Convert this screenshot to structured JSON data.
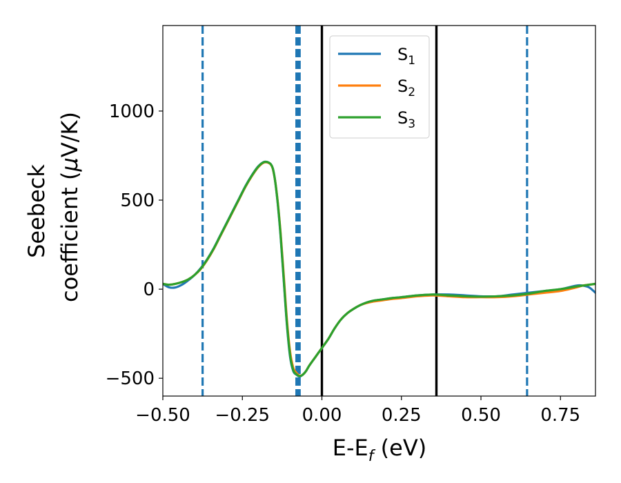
{
  "chart_data": {
    "type": "line",
    "title": "",
    "xlabel": "E-E",
    "xlabel_sub": "f",
    "xlabel_unit": " (eV)",
    "ylabel_line1": "Seebeck",
    "ylabel_line2": "coefficient  (",
    "ylabel_mu": "μ",
    "ylabel_unit": "V/K)",
    "xlim": [
      -0.5,
      0.86
    ],
    "ylim": [
      -600,
      1480
    ],
    "xticks": [
      -0.5,
      -0.25,
      0.0,
      0.25,
      0.5,
      0.75
    ],
    "xtick_labels": [
      "−0.50",
      "−0.25",
      "0.00",
      "0.25",
      "0.50",
      "0.75"
    ],
    "yticks": [
      -500,
      0,
      500,
      1000
    ],
    "ytick_labels": [
      "−500",
      "0",
      "500",
      "1000"
    ],
    "grid": false,
    "legend_position": "top-right",
    "series": [
      {
        "name": "S",
        "subscript": "1",
        "color": "#1f77b4",
        "x": [
          -0.5,
          -0.48,
          -0.46,
          -0.44,
          -0.42,
          -0.4,
          -0.38,
          -0.36,
          -0.34,
          -0.32,
          -0.3,
          -0.28,
          -0.26,
          -0.24,
          -0.22,
          -0.2,
          -0.18,
          -0.16,
          -0.15,
          -0.14,
          -0.13,
          -0.12,
          -0.11,
          -0.1,
          -0.09,
          -0.08,
          -0.07,
          -0.06,
          -0.05,
          -0.04,
          -0.02,
          0.0,
          0.02,
          0.04,
          0.06,
          0.08,
          0.1,
          0.12,
          0.14,
          0.16,
          0.18,
          0.2,
          0.22,
          0.25,
          0.3,
          0.35,
          0.4,
          0.45,
          0.5,
          0.55,
          0.6,
          0.65,
          0.7,
          0.75,
          0.8,
          0.82,
          0.84,
          0.86
        ],
        "y": [
          30,
          10,
          10,
          25,
          50,
          80,
          120,
          170,
          230,
          300,
          370,
          440,
          510,
          580,
          640,
          690,
          715,
          700,
          640,
          500,
          300,
          50,
          -200,
          -380,
          -460,
          -480,
          -490,
          -480,
          -460,
          -430,
          -380,
          -330,
          -280,
          -220,
          -170,
          -135,
          -110,
          -90,
          -75,
          -65,
          -60,
          -55,
          -50,
          -45,
          -35,
          -30,
          -30,
          -35,
          -40,
          -40,
          -30,
          -20,
          -10,
          0,
          20,
          20,
          10,
          -20
        ]
      },
      {
        "name": "S",
        "subscript": "2",
        "color": "#ff7f0e",
        "x": [
          -0.5,
          -0.48,
          -0.46,
          -0.44,
          -0.42,
          -0.4,
          -0.38,
          -0.36,
          -0.34,
          -0.32,
          -0.3,
          -0.28,
          -0.26,
          -0.24,
          -0.22,
          -0.2,
          -0.18,
          -0.16,
          -0.15,
          -0.14,
          -0.13,
          -0.12,
          -0.11,
          -0.1,
          -0.09,
          -0.08,
          -0.07,
          -0.06,
          -0.05,
          -0.04,
          -0.02,
          0.0,
          0.02,
          0.04,
          0.06,
          0.08,
          0.1,
          0.12,
          0.14,
          0.16,
          0.18,
          0.2,
          0.22,
          0.25,
          0.3,
          0.35,
          0.4,
          0.45,
          0.5,
          0.55,
          0.6,
          0.65,
          0.7,
          0.75,
          0.8,
          0.82,
          0.84,
          0.86
        ],
        "y": [
          30,
          25,
          30,
          40,
          55,
          80,
          115,
          165,
          225,
          295,
          365,
          435,
          505,
          575,
          635,
          685,
          712,
          698,
          640,
          510,
          320,
          80,
          -170,
          -350,
          -440,
          -470,
          -485,
          -480,
          -460,
          -430,
          -380,
          -330,
          -280,
          -220,
          -170,
          -135,
          -110,
          -90,
          -78,
          -70,
          -65,
          -60,
          -55,
          -50,
          -40,
          -35,
          -40,
          -45,
          -45,
          -45,
          -40,
          -30,
          -20,
          -10,
          10,
          20,
          25,
          30
        ]
      },
      {
        "name": "S",
        "subscript": "3",
        "color": "#2ca02c",
        "x": [
          -0.5,
          -0.48,
          -0.46,
          -0.44,
          -0.42,
          -0.4,
          -0.38,
          -0.36,
          -0.34,
          -0.32,
          -0.3,
          -0.28,
          -0.26,
          -0.24,
          -0.22,
          -0.2,
          -0.18,
          -0.16,
          -0.15,
          -0.14,
          -0.13,
          -0.12,
          -0.11,
          -0.1,
          -0.09,
          -0.08,
          -0.07,
          -0.06,
          -0.05,
          -0.04,
          -0.02,
          0.0,
          0.02,
          0.04,
          0.06,
          0.08,
          0.1,
          0.12,
          0.14,
          0.16,
          0.18,
          0.2,
          0.22,
          0.25,
          0.3,
          0.35,
          0.4,
          0.45,
          0.5,
          0.55,
          0.6,
          0.65,
          0.7,
          0.75,
          0.8,
          0.82,
          0.84,
          0.86
        ],
        "y": [
          30,
          25,
          30,
          40,
          55,
          80,
          117,
          168,
          228,
          298,
          368,
          438,
          508,
          578,
          638,
          688,
          714,
          700,
          642,
          505,
          310,
          60,
          -190,
          -370,
          -455,
          -478,
          -488,
          -480,
          -460,
          -430,
          -380,
          -330,
          -280,
          -220,
          -170,
          -135,
          -110,
          -90,
          -75,
          -65,
          -60,
          -55,
          -50,
          -45,
          -35,
          -30,
          -35,
          -40,
          -42,
          -40,
          -35,
          -25,
          -10,
          0,
          15,
          20,
          25,
          30
        ]
      }
    ],
    "vlines": [
      {
        "x": -0.375,
        "color": "#1f77b4",
        "style": "dashed"
      },
      {
        "x": -0.08,
        "color": "#1f77b4",
        "style": "dashed"
      },
      {
        "x": -0.075,
        "color": "#1f77b4",
        "style": "dashed"
      },
      {
        "x": -0.07,
        "color": "#1f77b4",
        "style": "dashed"
      },
      {
        "x": 0.0,
        "color": "#000000",
        "style": "solid"
      },
      {
        "x": 0.36,
        "color": "#000000",
        "style": "solid"
      },
      {
        "x": 0.645,
        "color": "#1f77b4",
        "style": "dashed"
      }
    ]
  }
}
